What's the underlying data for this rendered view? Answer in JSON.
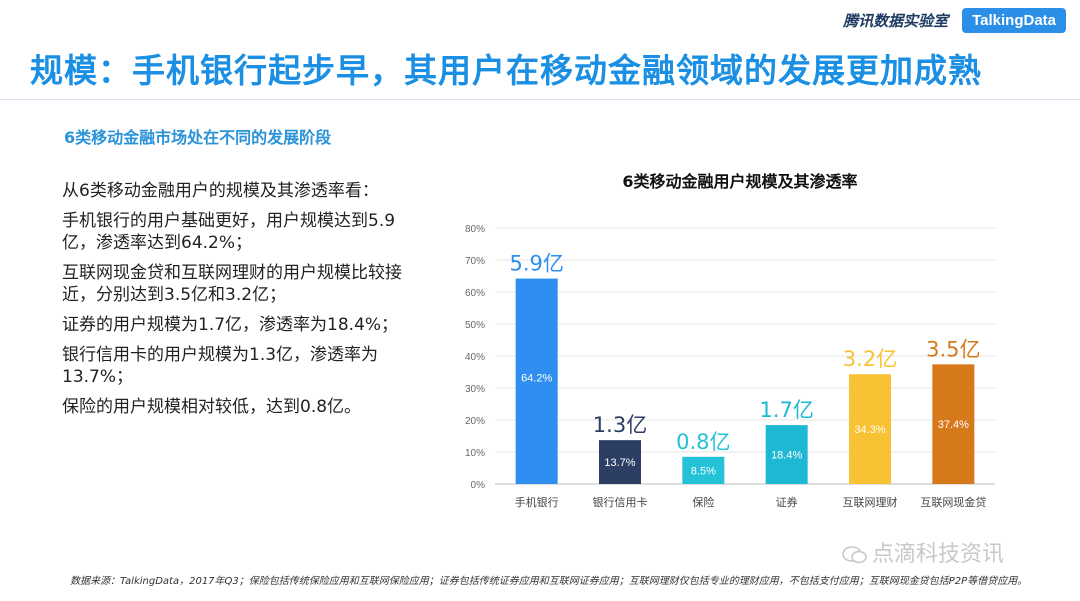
{
  "header": {
    "brand_cn": "腾讯数据实验室",
    "brand_en": "TalkingData"
  },
  "title": "规模：手机银行起步早，其用户在移动金融领域的发展更加成熟",
  "subheading": "6类移动金融市场处在不同的发展阶段",
  "paragraphs": [
    "从6类移动金融用户的规模及其渗透率看：",
    "手机银行的用户基础更好，用户规模达到5.9亿，渗透率达到64.2%；",
    "互联网现金贷和互联网理财的用户规模比较接近，分别达到3.5亿和3.2亿；",
    "证券的用户规模为1.7亿，渗透率为18.4%；",
    "银行信用卡的用户规模为1.3亿，渗透率为13.7%；",
    "保险的用户规模相对较低，达到0.8亿。"
  ],
  "chart_data": {
    "type": "bar",
    "title": "6类移动金融用户规模及其渗透率",
    "categories": [
      "手机银行",
      "银行信用卡",
      "保险",
      "证券",
      "互联网理财",
      "互联网现金贷"
    ],
    "values": [
      64.2,
      13.7,
      8.5,
      18.4,
      34.3,
      37.4
    ],
    "value_labels": [
      "64.2%",
      "13.7%",
      "8.5%",
      "18.4%",
      "34.3%",
      "37.4%"
    ],
    "user_scale_labels": [
      "5.9亿",
      "1.3亿",
      "0.8亿",
      "1.7亿",
      "3.2亿",
      "3.5亿"
    ],
    "colors": [
      "#2e8ff0",
      "#2c3e63",
      "#23c2d6",
      "#1fb8d4",
      "#f8c234",
      "#d6791b"
    ],
    "ylim": [
      0,
      80
    ],
    "yticks": [
      0,
      10,
      20,
      30,
      40,
      50,
      60,
      70,
      80
    ],
    "ytick_labels": [
      "0%",
      "10%",
      "20%",
      "30%",
      "40%",
      "50%",
      "60%",
      "70%",
      "80%"
    ],
    "grid": true,
    "legend": "none"
  },
  "footnote": "数据来源：TalkingData，2017年Q3；保险包括传统保险应用和互联网保险应用；证券包括传统证券应用和互联网证券应用；互联网理财仅包括专业的理财应用，不包括支付应用；互联网现金贷包括P2P等借贷应用。",
  "watermark": "点滴科技资讯"
}
